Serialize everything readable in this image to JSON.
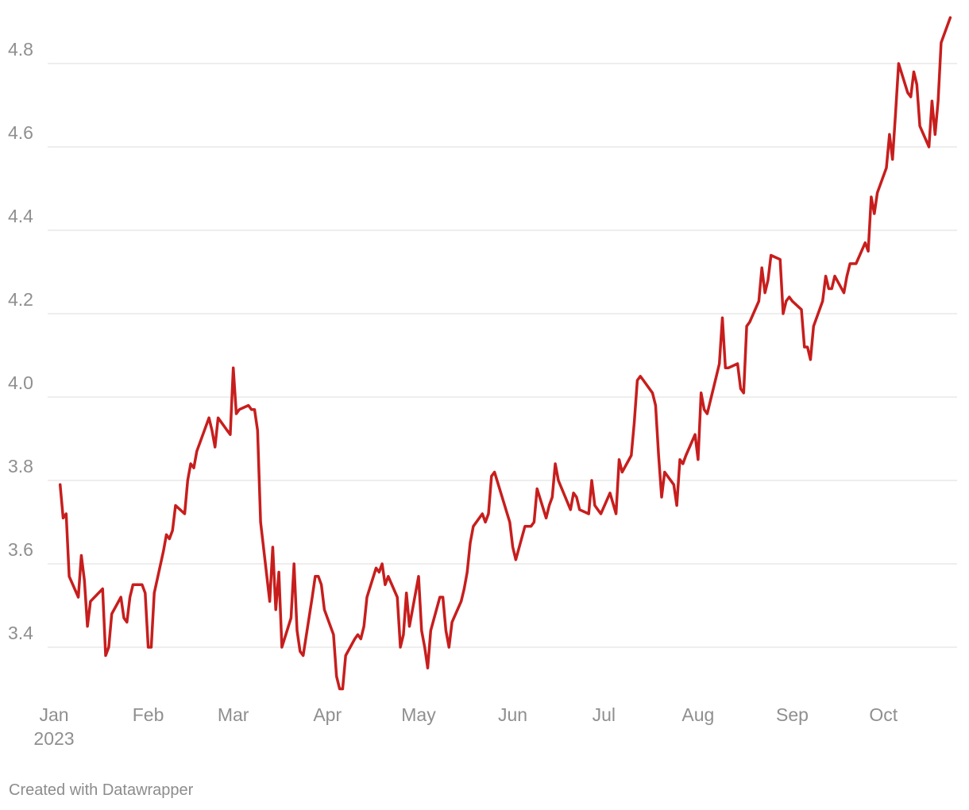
{
  "chart_data": {
    "type": "line",
    "title": "",
    "xlabel": "",
    "ylabel": "",
    "ylim": [
      3.29,
      4.92
    ],
    "grid": "horizontal",
    "y_ticks": [
      {
        "value": 3.4,
        "label": "3.4"
      },
      {
        "value": 3.6,
        "label": "3.6"
      },
      {
        "value": 3.8,
        "label": "3.8"
      },
      {
        "value": 4.0,
        "label": "4.0"
      },
      {
        "value": 4.2,
        "label": "4.2"
      },
      {
        "value": 4.4,
        "label": "4.4"
      },
      {
        "value": 4.6,
        "label": "4.6"
      },
      {
        "value": 4.8,
        "label": "4.8"
      }
    ],
    "x_ticks": [
      {
        "date": "2023-01-01",
        "label": "Jan",
        "sublabel": "2023"
      },
      {
        "date": "2023-02-01",
        "label": "Feb"
      },
      {
        "date": "2023-03-01",
        "label": "Mar"
      },
      {
        "date": "2023-04-01",
        "label": "Apr"
      },
      {
        "date": "2023-05-01",
        "label": "May"
      },
      {
        "date": "2023-06-01",
        "label": "Jun"
      },
      {
        "date": "2023-07-01",
        "label": "Jul"
      },
      {
        "date": "2023-08-01",
        "label": "Aug"
      },
      {
        "date": "2023-09-01",
        "label": "Sep"
      },
      {
        "date": "2023-10-01",
        "label": "Oct"
      }
    ],
    "series": [
      {
        "color": "#c71e1d",
        "points": [
          [
            "2023-01-03",
            3.79
          ],
          [
            "2023-01-04",
            3.71
          ],
          [
            "2023-01-05",
            3.72
          ],
          [
            "2023-01-06",
            3.57
          ],
          [
            "2023-01-09",
            3.52
          ],
          [
            "2023-01-10",
            3.62
          ],
          [
            "2023-01-11",
            3.56
          ],
          [
            "2023-01-12",
            3.45
          ],
          [
            "2023-01-13",
            3.51
          ],
          [
            "2023-01-17",
            3.54
          ],
          [
            "2023-01-18",
            3.38
          ],
          [
            "2023-01-19",
            3.4
          ],
          [
            "2023-01-20",
            3.48
          ],
          [
            "2023-01-23",
            3.52
          ],
          [
            "2023-01-24",
            3.47
          ],
          [
            "2023-01-25",
            3.46
          ],
          [
            "2023-01-26",
            3.52
          ],
          [
            "2023-01-27",
            3.55
          ],
          [
            "2023-01-30",
            3.55
          ],
          [
            "2023-01-31",
            3.53
          ],
          [
            "2023-02-01",
            3.4
          ],
          [
            "2023-02-02",
            3.4
          ],
          [
            "2023-02-03",
            3.53
          ],
          [
            "2023-02-06",
            3.63
          ],
          [
            "2023-02-07",
            3.67
          ],
          [
            "2023-02-08",
            3.66
          ],
          [
            "2023-02-09",
            3.68
          ],
          [
            "2023-02-10",
            3.74
          ],
          [
            "2023-02-13",
            3.72
          ],
          [
            "2023-02-14",
            3.8
          ],
          [
            "2023-02-15",
            3.84
          ],
          [
            "2023-02-16",
            3.83
          ],
          [
            "2023-02-17",
            3.87
          ],
          [
            "2023-02-21",
            3.95
          ],
          [
            "2023-02-22",
            3.92
          ],
          [
            "2023-02-23",
            3.88
          ],
          [
            "2023-02-24",
            3.95
          ],
          [
            "2023-02-27",
            3.92
          ],
          [
            "2023-02-28",
            3.91
          ],
          [
            "2023-03-01",
            4.07
          ],
          [
            "2023-03-02",
            3.96
          ],
          [
            "2023-03-03",
            3.97
          ],
          [
            "2023-03-06",
            3.98
          ],
          [
            "2023-03-07",
            3.97
          ],
          [
            "2023-03-08",
            3.97
          ],
          [
            "2023-03-09",
            3.92
          ],
          [
            "2023-03-10",
            3.7
          ],
          [
            "2023-03-13",
            3.51
          ],
          [
            "2023-03-14",
            3.64
          ],
          [
            "2023-03-15",
            3.49
          ],
          [
            "2023-03-16",
            3.58
          ],
          [
            "2023-03-17",
            3.4
          ],
          [
            "2023-03-20",
            3.47
          ],
          [
            "2023-03-21",
            3.6
          ],
          [
            "2023-03-22",
            3.44
          ],
          [
            "2023-03-23",
            3.39
          ],
          [
            "2023-03-24",
            3.38
          ],
          [
            "2023-03-27",
            3.52
          ],
          [
            "2023-03-28",
            3.57
          ],
          [
            "2023-03-29",
            3.57
          ],
          [
            "2023-03-30",
            3.55
          ],
          [
            "2023-03-31",
            3.49
          ],
          [
            "2023-04-03",
            3.43
          ],
          [
            "2023-04-04",
            3.33
          ],
          [
            "2023-04-05",
            3.3
          ],
          [
            "2023-04-06",
            3.3
          ],
          [
            "2023-04-07",
            3.38
          ],
          [
            "2023-04-10",
            3.42
          ],
          [
            "2023-04-11",
            3.43
          ],
          [
            "2023-04-12",
            3.42
          ],
          [
            "2023-04-13",
            3.45
          ],
          [
            "2023-04-14",
            3.52
          ],
          [
            "2023-04-17",
            3.59
          ],
          [
            "2023-04-18",
            3.58
          ],
          [
            "2023-04-19",
            3.6
          ],
          [
            "2023-04-20",
            3.55
          ],
          [
            "2023-04-21",
            3.57
          ],
          [
            "2023-04-24",
            3.52
          ],
          [
            "2023-04-25",
            3.4
          ],
          [
            "2023-04-26",
            3.43
          ],
          [
            "2023-04-27",
            3.53
          ],
          [
            "2023-04-28",
            3.45
          ],
          [
            "2023-05-01",
            3.57
          ],
          [
            "2023-05-02",
            3.44
          ],
          [
            "2023-05-03",
            3.4
          ],
          [
            "2023-05-04",
            3.35
          ],
          [
            "2023-05-05",
            3.44
          ],
          [
            "2023-05-08",
            3.52
          ],
          [
            "2023-05-09",
            3.52
          ],
          [
            "2023-05-10",
            3.44
          ],
          [
            "2023-05-11",
            3.4
          ],
          [
            "2023-05-12",
            3.46
          ],
          [
            "2023-05-15",
            3.51
          ],
          [
            "2023-05-16",
            3.54
          ],
          [
            "2023-05-17",
            3.58
          ],
          [
            "2023-05-18",
            3.65
          ],
          [
            "2023-05-19",
            3.69
          ],
          [
            "2023-05-22",
            3.72
          ],
          [
            "2023-05-23",
            3.7
          ],
          [
            "2023-05-24",
            3.72
          ],
          [
            "2023-05-25",
            3.81
          ],
          [
            "2023-05-26",
            3.82
          ],
          [
            "2023-05-31",
            3.7
          ],
          [
            "2023-06-01",
            3.64
          ],
          [
            "2023-06-02",
            3.61
          ],
          [
            "2023-06-05",
            3.69
          ],
          [
            "2023-06-06",
            3.69
          ],
          [
            "2023-06-07",
            3.69
          ],
          [
            "2023-06-08",
            3.7
          ],
          [
            "2023-06-09",
            3.78
          ],
          [
            "2023-06-12",
            3.71
          ],
          [
            "2023-06-13",
            3.74
          ],
          [
            "2023-06-14",
            3.76
          ],
          [
            "2023-06-15",
            3.84
          ],
          [
            "2023-06-16",
            3.8
          ],
          [
            "2023-06-20",
            3.73
          ],
          [
            "2023-06-21",
            3.77
          ],
          [
            "2023-06-22",
            3.76
          ],
          [
            "2023-06-23",
            3.73
          ],
          [
            "2023-06-26",
            3.72
          ],
          [
            "2023-06-27",
            3.8
          ],
          [
            "2023-06-28",
            3.74
          ],
          [
            "2023-06-29",
            3.73
          ],
          [
            "2023-06-30",
            3.72
          ],
          [
            "2023-07-03",
            3.77
          ],
          [
            "2023-07-05",
            3.72
          ],
          [
            "2023-07-06",
            3.85
          ],
          [
            "2023-07-07",
            3.82
          ],
          [
            "2023-07-10",
            3.86
          ],
          [
            "2023-07-11",
            3.94
          ],
          [
            "2023-07-12",
            4.04
          ],
          [
            "2023-07-13",
            4.05
          ],
          [
            "2023-07-14",
            4.04
          ],
          [
            "2023-07-17",
            4.01
          ],
          [
            "2023-07-18",
            3.98
          ],
          [
            "2023-07-19",
            3.86
          ],
          [
            "2023-07-20",
            3.76
          ],
          [
            "2023-07-21",
            3.82
          ],
          [
            "2023-07-24",
            3.79
          ],
          [
            "2023-07-25",
            3.74
          ],
          [
            "2023-07-26",
            3.85
          ],
          [
            "2023-07-27",
            3.84
          ],
          [
            "2023-07-28",
            3.86
          ],
          [
            "2023-07-31",
            3.91
          ],
          [
            "2023-08-01",
            3.85
          ],
          [
            "2023-08-02",
            4.01
          ],
          [
            "2023-08-03",
            3.97
          ],
          [
            "2023-08-04",
            3.96
          ],
          [
            "2023-08-07",
            4.05
          ],
          [
            "2023-08-08",
            4.08
          ],
          [
            "2023-08-09",
            4.19
          ],
          [
            "2023-08-10",
            4.07
          ],
          [
            "2023-08-11",
            4.07
          ],
          [
            "2023-08-14",
            4.08
          ],
          [
            "2023-08-15",
            4.02
          ],
          [
            "2023-08-16",
            4.01
          ],
          [
            "2023-08-17",
            4.17
          ],
          [
            "2023-08-18",
            4.18
          ],
          [
            "2023-08-21",
            4.23
          ],
          [
            "2023-08-22",
            4.31
          ],
          [
            "2023-08-23",
            4.25
          ],
          [
            "2023-08-24",
            4.28
          ],
          [
            "2023-08-25",
            4.34
          ],
          [
            "2023-08-28",
            4.33
          ],
          [
            "2023-08-29",
            4.2
          ],
          [
            "2023-08-30",
            4.23
          ],
          [
            "2023-08-31",
            4.24
          ],
          [
            "2023-09-01",
            4.23
          ],
          [
            "2023-09-04",
            4.21
          ],
          [
            "2023-09-05",
            4.12
          ],
          [
            "2023-09-06",
            4.12
          ],
          [
            "2023-09-07",
            4.09
          ],
          [
            "2023-09-08",
            4.17
          ],
          [
            "2023-09-11",
            4.23
          ],
          [
            "2023-09-12",
            4.29
          ],
          [
            "2023-09-13",
            4.26
          ],
          [
            "2023-09-14",
            4.26
          ],
          [
            "2023-09-15",
            4.29
          ],
          [
            "2023-09-18",
            4.25
          ],
          [
            "2023-09-19",
            4.29
          ],
          [
            "2023-09-20",
            4.32
          ],
          [
            "2023-09-21",
            4.32
          ],
          [
            "2023-09-22",
            4.32
          ],
          [
            "2023-09-25",
            4.37
          ],
          [
            "2023-09-26",
            4.35
          ],
          [
            "2023-09-27",
            4.48
          ],
          [
            "2023-09-28",
            4.44
          ],
          [
            "2023-09-29",
            4.49
          ],
          [
            "2023-10-02",
            4.55
          ],
          [
            "2023-10-03",
            4.63
          ],
          [
            "2023-10-04",
            4.57
          ],
          [
            "2023-10-05",
            4.68
          ],
          [
            "2023-10-06",
            4.8
          ],
          [
            "2023-10-09",
            4.73
          ],
          [
            "2023-10-10",
            4.72
          ],
          [
            "2023-10-11",
            4.78
          ],
          [
            "2023-10-12",
            4.75
          ],
          [
            "2023-10-13",
            4.65
          ],
          [
            "2023-10-16",
            4.6
          ],
          [
            "2023-10-17",
            4.71
          ],
          [
            "2023-10-18",
            4.63
          ],
          [
            "2023-10-19",
            4.71
          ],
          [
            "2023-10-20",
            4.85
          ],
          [
            "2023-10-23",
            4.91
          ]
        ]
      }
    ]
  },
  "footer": {
    "credit": "Created with Datawrapper"
  }
}
